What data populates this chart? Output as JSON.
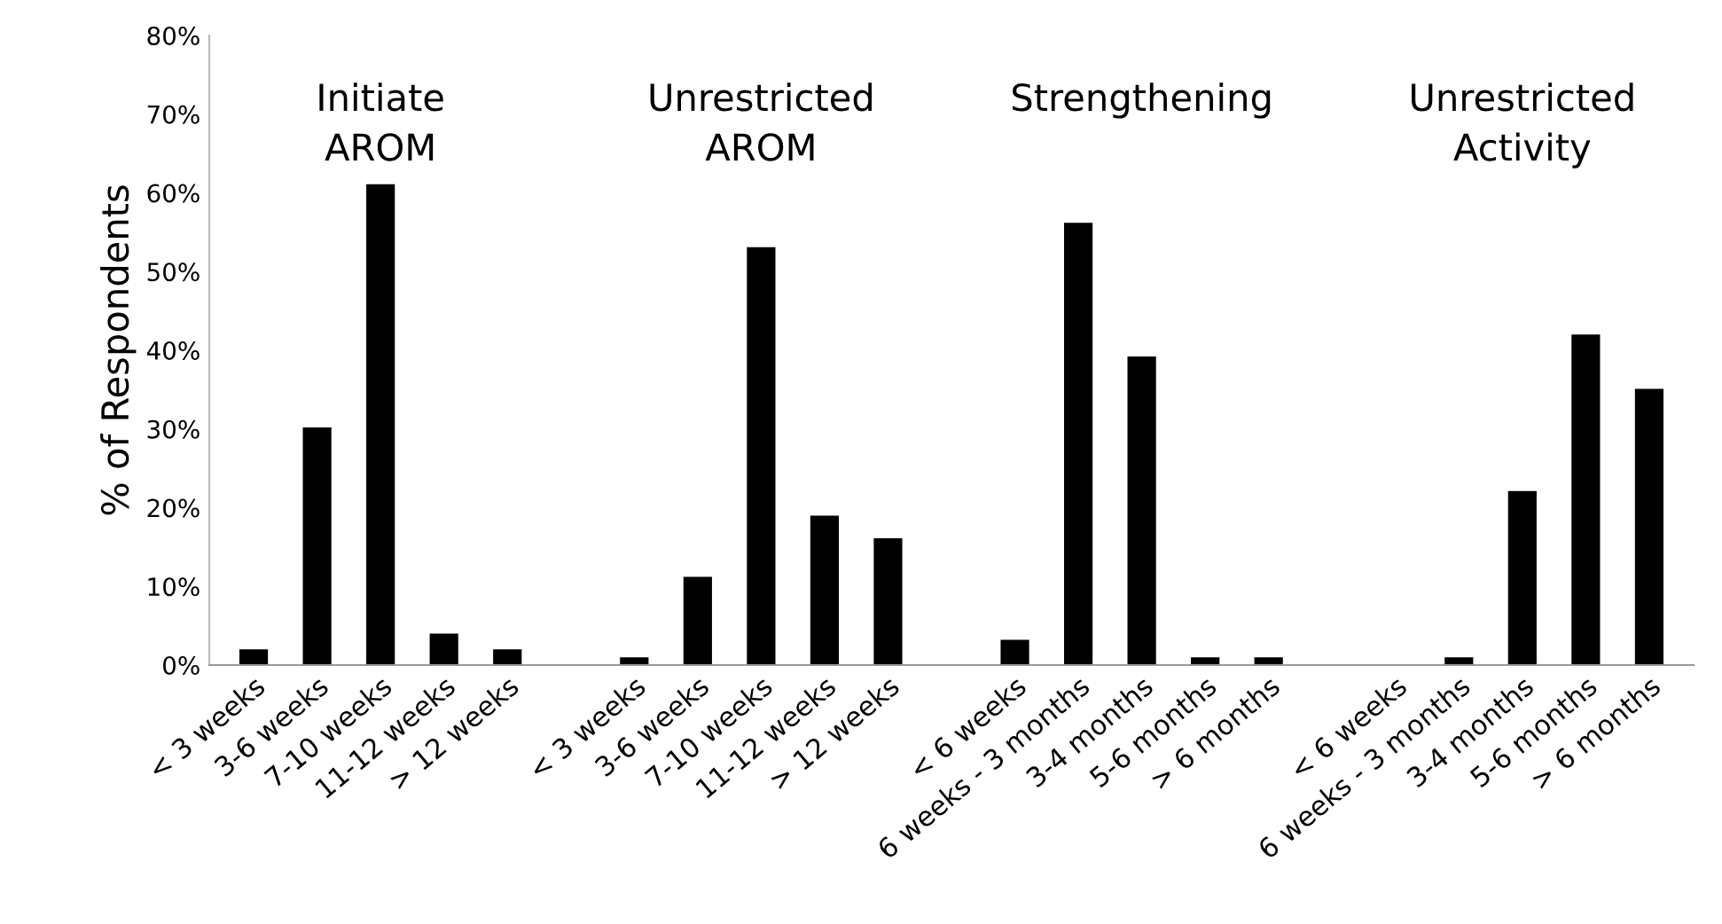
{
  "chart_data": {
    "type": "bar",
    "ylabel": "% of Respondents",
    "categories": [
      "< 3 weeks",
      "3-6 weeks",
      "7-10 weeks",
      "11-12 weeks",
      "> 12 weeks",
      null,
      "< 3 weeks",
      "3-6 weeks",
      "7-10 weeks",
      "11-12 weeks",
      "> 12 weeks",
      null,
      "< 6 weeks",
      "6 weeks - 3 months",
      "3-4 months",
      "5-6 months",
      "> 6 months",
      null,
      "< 6 weeks",
      "6 weeks - 3 months",
      "3-4 months",
      "5-6 months",
      "> 6 months"
    ],
    "values": [
      2.0,
      30.2,
      61.1,
      4.0,
      2.0,
      null,
      1.0,
      11.2,
      53.1,
      19.0,
      16.1,
      null,
      3.2,
      56.2,
      39.2,
      1.0,
      1.0,
      null,
      0,
      1.0,
      22.1,
      42.0,
      35.1
    ],
    "color": "#000000",
    "ylim": [
      0,
      80
    ],
    "yticks": [
      {
        "value": 0,
        "label": "0%"
      },
      {
        "value": 10,
        "label": "10%"
      },
      {
        "value": 20,
        "label": "20%"
      },
      {
        "value": 30,
        "label": "30%"
      },
      {
        "value": 40,
        "label": "40%"
      },
      {
        "value": 50,
        "label": "50%"
      },
      {
        "value": 60,
        "label": "60%"
      },
      {
        "value": 70,
        "label": "70%"
      },
      {
        "value": 80,
        "label": "80%"
      }
    ],
    "annotations": [
      "Initiate\nAROM",
      "Unrestricted\nAROM",
      "Strengthening",
      "Unrestricted\nActivity"
    ],
    "grid": false,
    "legend": false
  }
}
